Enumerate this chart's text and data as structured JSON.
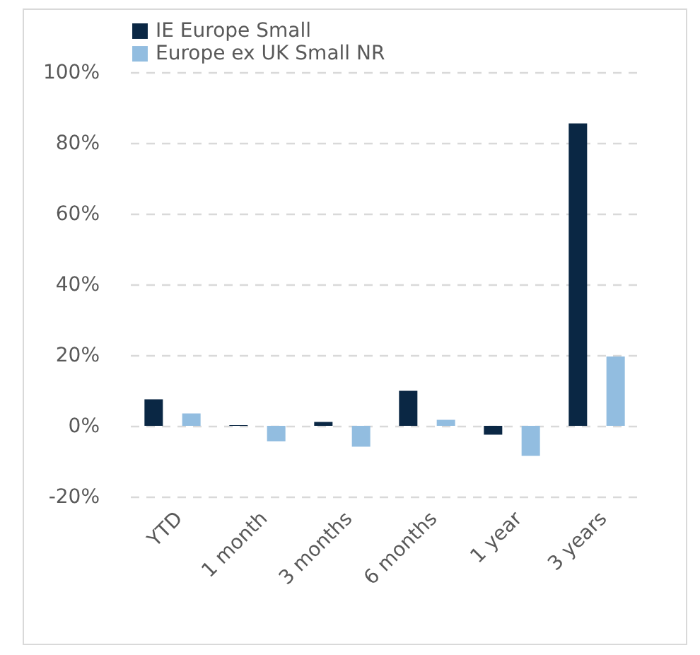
{
  "chart_data": {
    "type": "bar",
    "categories": [
      "YTD",
      "1 month",
      "3 months",
      "6 months",
      "1 year",
      "3 years"
    ],
    "series": [
      {
        "name": "IE Europe Small",
        "color": "#0a2744",
        "values": [
          7.5,
          0.2,
          1.1,
          9.9,
          -2.5,
          85.5
        ]
      },
      {
        "name": "Europe ex UK Small NR",
        "color": "#92bde0",
        "values": [
          3.5,
          -4.4,
          -5.9,
          1.7,
          -8.5,
          19.6
        ]
      }
    ],
    "ylim": [
      -20,
      100
    ],
    "yticks": [
      {
        "value": -20,
        "label": "-20%"
      },
      {
        "value": 0,
        "label": "0%"
      },
      {
        "value": 20,
        "label": "20%"
      },
      {
        "value": 40,
        "label": "40%"
      },
      {
        "value": 60,
        "label": "60%"
      },
      {
        "value": 80,
        "label": "80%"
      },
      {
        "value": 100,
        "label": "100%"
      }
    ],
    "grid": "y",
    "legend": "top"
  }
}
